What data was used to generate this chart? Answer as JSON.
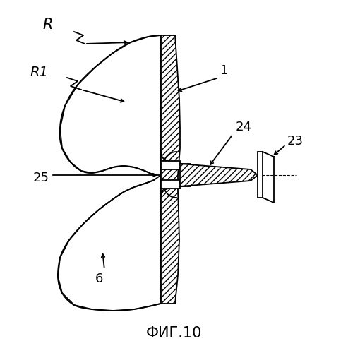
{
  "background_color": "#ffffff",
  "line_color": "#000000",
  "title": "ФИГ.10",
  "title_fontsize": 15,
  "figsize": [
    4.93,
    5.0
  ],
  "dpi": 100
}
